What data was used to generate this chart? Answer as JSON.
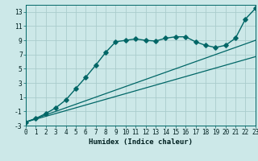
{
  "xlabel": "Humidex (Indice chaleur)",
  "bg_color": "#cce8e8",
  "grid_color": "#aacccc",
  "line_color": "#006666",
  "xlim": [
    0,
    23
  ],
  "ylim": [
    -3,
    14
  ],
  "xticks": [
    0,
    1,
    2,
    3,
    4,
    5,
    6,
    7,
    8,
    9,
    10,
    11,
    12,
    13,
    14,
    15,
    16,
    17,
    18,
    19,
    20,
    21,
    22,
    23
  ],
  "yticks": [
    -3,
    -1,
    1,
    3,
    5,
    7,
    9,
    11,
    13
  ],
  "line1_x": [
    0,
    1,
    2,
    3,
    4,
    5,
    6,
    7,
    8,
    9,
    10,
    11,
    12,
    13,
    14,
    15,
    16,
    17,
    18,
    19,
    20,
    21,
    22,
    23
  ],
  "line1_y": [
    -2.5,
    -2.1,
    -1.7,
    -1.3,
    -0.9,
    -0.5,
    -0.1,
    0.3,
    0.7,
    1.1,
    1.5,
    1.9,
    2.3,
    2.7,
    3.1,
    3.5,
    3.9,
    4.3,
    4.7,
    5.1,
    5.5,
    5.9,
    6.3,
    6.7
  ],
  "line2_x": [
    0,
    1,
    2,
    3,
    4,
    5,
    6,
    7,
    8,
    9,
    10,
    11,
    12,
    13,
    14,
    15,
    16,
    17,
    18,
    19,
    20,
    21,
    22,
    23
  ],
  "line2_y": [
    -2.5,
    -2.0,
    -1.5,
    -1.0,
    -0.5,
    0.0,
    0.5,
    1.0,
    1.5,
    2.0,
    2.5,
    3.0,
    3.5,
    4.0,
    4.5,
    5.0,
    5.5,
    6.0,
    6.5,
    7.0,
    7.5,
    8.0,
    8.5,
    9.0
  ],
  "line3_x": [
    0,
    1,
    2,
    3,
    4,
    5,
    6,
    7,
    8,
    9,
    10,
    11,
    12,
    13,
    14,
    15,
    16,
    17,
    18,
    19,
    20,
    21,
    22,
    23
  ],
  "line3_y": [
    -2.5,
    -2.0,
    -1.3,
    -0.5,
    0.6,
    2.2,
    3.8,
    5.5,
    7.3,
    8.8,
    9.0,
    9.2,
    9.0,
    8.9,
    9.3,
    9.5,
    9.5,
    8.8,
    8.3,
    8.0,
    8.3,
    9.3,
    12.0,
    13.5
  ],
  "marker_size": 2.8,
  "lw_plain": 0.9,
  "lw_marker": 1.0,
  "tick_fontsize": 5.5,
  "xlabel_fontsize": 6.5
}
